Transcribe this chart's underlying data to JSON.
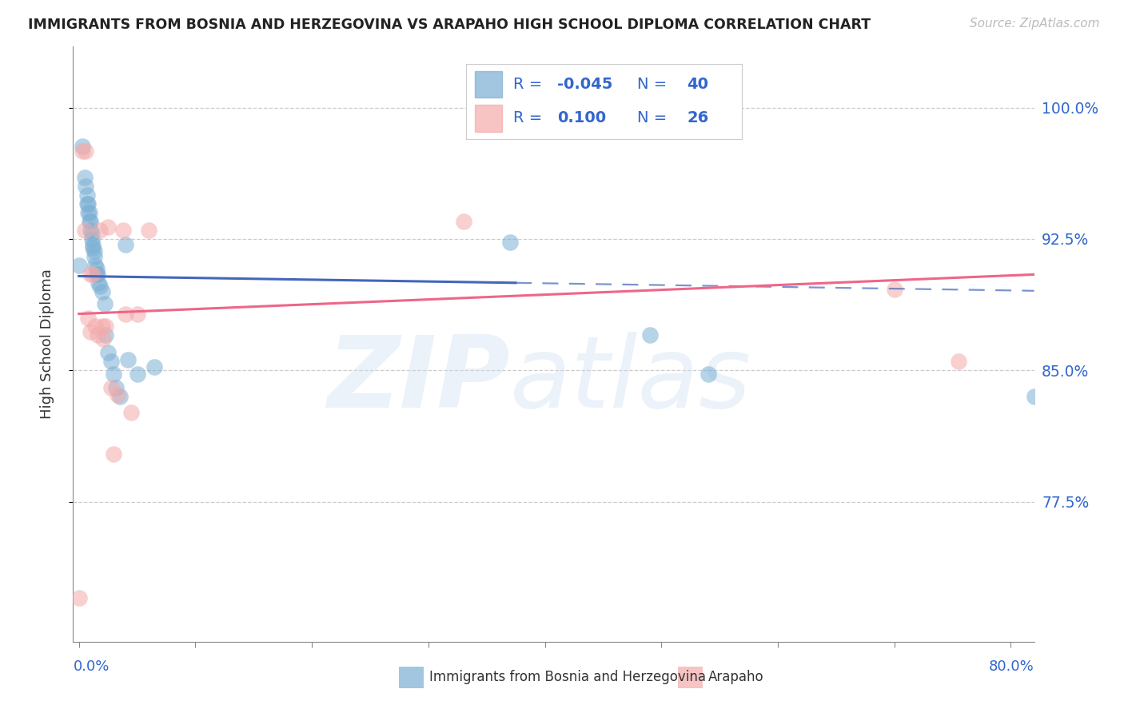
{
  "title": "IMMIGRANTS FROM BOSNIA AND HERZEGOVINA VS ARAPAHO HIGH SCHOOL DIPLOMA CORRELATION CHART",
  "source": "Source: ZipAtlas.com",
  "ylabel": "High School Diploma",
  "yticks": [
    0.775,
    0.85,
    0.925,
    1.0
  ],
  "ytick_labels": [
    "77.5%",
    "85.0%",
    "92.5%",
    "100.0%"
  ],
  "xlim": [
    -0.005,
    0.82
  ],
  "ylim": [
    0.695,
    1.035
  ],
  "blue_r": -0.045,
  "blue_n": 40,
  "pink_r": 0.1,
  "pink_n": 26,
  "blue_color": "#7BAFD4",
  "pink_color": "#F4AAAA",
  "blue_line_color": "#4466BB",
  "pink_line_color": "#EE6688",
  "blue_x": [
    0.0,
    0.003,
    0.005,
    0.006,
    0.007,
    0.007,
    0.008,
    0.008,
    0.009,
    0.009,
    0.01,
    0.01,
    0.011,
    0.011,
    0.012,
    0.012,
    0.013,
    0.013,
    0.014,
    0.015,
    0.015,
    0.016,
    0.017,
    0.018,
    0.02,
    0.022,
    0.023,
    0.025,
    0.028,
    0.03,
    0.032,
    0.035,
    0.04,
    0.042,
    0.05,
    0.065,
    0.37,
    0.49,
    0.54,
    0.82
  ],
  "blue_y": [
    0.91,
    0.978,
    0.96,
    0.955,
    0.95,
    0.945,
    0.945,
    0.94,
    0.94,
    0.935,
    0.935,
    0.93,
    0.928,
    0.925,
    0.922,
    0.92,
    0.918,
    0.915,
    0.91,
    0.908,
    0.905,
    0.905,
    0.9,
    0.898,
    0.895,
    0.888,
    0.87,
    0.86,
    0.855,
    0.848,
    0.84,
    0.835,
    0.922,
    0.856,
    0.848,
    0.852,
    0.923,
    0.87,
    0.848,
    0.835
  ],
  "pink_x": [
    0.0,
    0.003,
    0.005,
    0.006,
    0.008,
    0.01,
    0.01,
    0.012,
    0.014,
    0.016,
    0.018,
    0.02,
    0.021,
    0.023,
    0.025,
    0.028,
    0.03,
    0.033,
    0.038,
    0.04,
    0.045,
    0.05,
    0.06,
    0.33,
    0.7,
    0.755
  ],
  "pink_y": [
    0.72,
    0.975,
    0.93,
    0.975,
    0.88,
    0.872,
    0.905,
    0.905,
    0.875,
    0.87,
    0.93,
    0.875,
    0.868,
    0.875,
    0.932,
    0.84,
    0.802,
    0.836,
    0.93,
    0.882,
    0.826,
    0.882,
    0.93,
    0.935,
    0.896,
    0.855
  ],
  "legend_text_color": "#4466CC",
  "legend_value_color": "#4466CC",
  "watermark_color": "#C8DCEE"
}
